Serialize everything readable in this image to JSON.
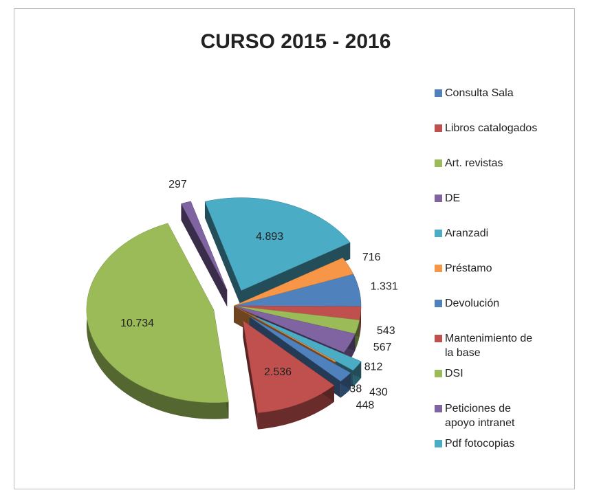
{
  "chart_data": {
    "type": "pie",
    "title": "CURSO 2015 - 2016",
    "categories": [
      "Consulta  Sala",
      "Libros catalogados",
      "Art. revistas",
      "DE",
      "Aranzadi",
      "Préstamo",
      "Devolución",
      "Mantenimiento de la base",
      "DSI",
      "Peticiones de apoyo intranet",
      "Pdf fotocopias",
      null
    ],
    "values": [
      1331,
      543,
      567,
      812,
      430,
      38,
      448,
      2536,
      10734,
      297,
      4893,
      716
    ],
    "value_labels": [
      "1.331",
      "543",
      "567",
      "812",
      "430",
      "38",
      "448",
      "2.536",
      "10.734",
      "297",
      "4.893",
      "716"
    ],
    "colors": [
      "#4f81bd",
      "#c0504d",
      "#9bbb59",
      "#8064a2",
      "#4bacc6",
      "#f79646",
      "#4f81bd",
      "#c0504d",
      "#9bbb59",
      "#8064a2",
      "#4bacc6",
      "#f79646"
    ]
  }
}
